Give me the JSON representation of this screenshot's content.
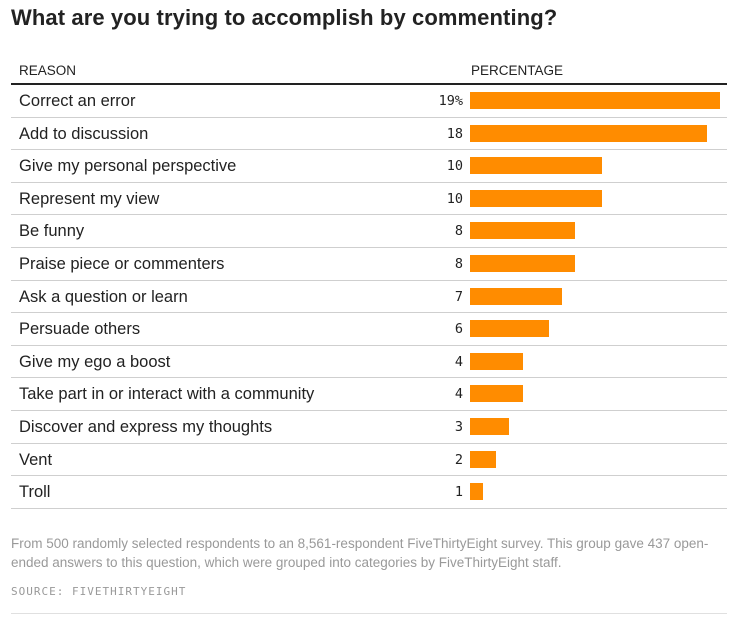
{
  "title": "What are you trying to accomplish by commenting?",
  "headers": {
    "reason": "REASON",
    "percentage": "PERCENTAGE"
  },
  "chart_data": {
    "type": "bar",
    "orientation": "horizontal",
    "title": "What are you trying to accomplish by commenting?",
    "xlabel": "PERCENTAGE",
    "ylabel": "REASON",
    "xlim": [
      0,
      19
    ],
    "bar_color": "#ff8c00",
    "categories": [
      "Correct an error",
      "Add to discussion",
      "Give my personal perspective",
      "Represent my view",
      "Be funny",
      "Praise piece or commenters",
      "Ask a question or learn",
      "Persuade others",
      "Give my ego a boost",
      "Take part in or interact with a community",
      "Discover and express my thoughts",
      "Vent",
      "Troll"
    ],
    "values": [
      19,
      18,
      10,
      10,
      8,
      8,
      7,
      6,
      4,
      4,
      3,
      2,
      1
    ],
    "value_labels": [
      "19%",
      "18",
      "10",
      "10",
      "8",
      "8",
      "7",
      "6",
      "4",
      "4",
      "3",
      "2",
      "1"
    ]
  },
  "note": "From 500 randomly selected respondents to an 8,561-respondent FiveThirtyEight survey. This group gave 437 open-ended answers to this question, which were grouped into categories by FiveThirtyEight staff.",
  "source": "SOURCE: FIVETHIRTYEIGHT"
}
